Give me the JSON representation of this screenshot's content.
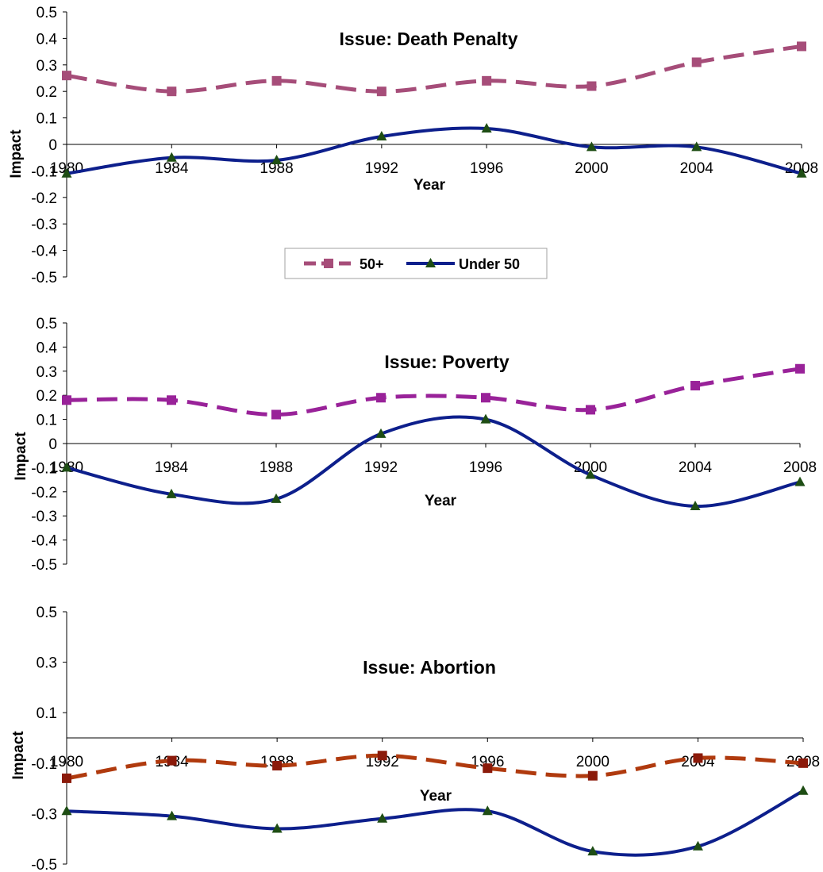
{
  "chart_data": [
    {
      "type": "line",
      "title": "Issue: Death Penalty",
      "xlabel": "Year",
      "ylabel": "Impact",
      "categories": [
        "1980",
        "1984",
        "1988",
        "1992",
        "1996",
        "2000",
        "2004",
        "2008"
      ],
      "ylim": [
        -0.5,
        0.5
      ],
      "yticks": [
        "0.5",
        "0.4",
        "0.3",
        "0.2",
        "0.1",
        "0",
        "-0.1",
        "-0.2",
        "-0.3",
        "-0.4",
        "-0.5"
      ],
      "ytick_values": [
        0.5,
        0.4,
        0.3,
        0.2,
        0.1,
        0,
        -0.1,
        -0.2,
        -0.3,
        -0.4,
        -0.5
      ],
      "legend": "bottom-center",
      "series": [
        {
          "name": "50+",
          "values": [
            0.26,
            0.2,
            0.24,
            0.2,
            0.24,
            0.22,
            0.31,
            0.37
          ],
          "color": "#a64d79",
          "dash": true,
          "marker": "square"
        },
        {
          "name": "Under 50",
          "values": [
            -0.11,
            -0.05,
            -0.06,
            0.03,
            0.06,
            -0.01,
            -0.01,
            -0.11
          ],
          "color": "#0d1f8c",
          "dash": false,
          "marker": "triangle"
        }
      ]
    },
    {
      "type": "line",
      "title": "Issue: Poverty",
      "xlabel": "Year",
      "ylabel": "Impact",
      "categories": [
        "1980",
        "1984",
        "1988",
        "1992",
        "1996",
        "2000",
        "2004",
        "2008"
      ],
      "ylim": [
        -0.5,
        0.5
      ],
      "yticks": [
        "0.5",
        "0.4",
        "0.3",
        "0.2",
        "0.1",
        "0",
        "-0.1",
        "-0.2",
        "-0.3",
        "-0.4",
        "-0.5"
      ],
      "ytick_values": [
        0.5,
        0.4,
        0.3,
        0.2,
        0.1,
        0,
        -0.1,
        -0.2,
        -0.3,
        -0.4,
        -0.5
      ],
      "series": [
        {
          "values": [
            0.18,
            0.18,
            0.12,
            0.19,
            0.19,
            0.14,
            0.24,
            0.31
          ],
          "color": "#992299",
          "dash": true,
          "marker": "square"
        },
        {
          "values": [
            -0.1,
            -0.21,
            -0.23,
            0.04,
            0.1,
            -0.13,
            -0.26,
            -0.16
          ],
          "color": "#0d1f8c",
          "dash": false,
          "marker": "triangle"
        }
      ]
    },
    {
      "type": "line",
      "title": "Issue: Abortion",
      "xlabel": "Year",
      "ylabel": "Impact",
      "categories": [
        "1980",
        "1984",
        "1988",
        "1992",
        "1996",
        "2000",
        "2004",
        "2008"
      ],
      "ylim": [
        -0.5,
        0.5
      ],
      "yticks": [
        "0.5",
        "0.3",
        "0.1",
        "-0.1",
        "-0.3",
        "-0.5"
      ],
      "ytick_values": [
        0.5,
        0.3,
        0.1,
        -0.1,
        -0.3,
        -0.5
      ],
      "series": [
        {
          "values": [
            -0.16,
            -0.09,
            -0.11,
            -0.07,
            -0.12,
            -0.15,
            -0.08,
            -0.1
          ],
          "color": "#b03a0e",
          "dash": true,
          "marker": "square"
        },
        {
          "values": [
            -0.29,
            -0.31,
            -0.36,
            -0.32,
            -0.29,
            -0.45,
            -0.43,
            -0.21
          ],
          "color": "#0d1f8c",
          "dash": false,
          "marker": "triangle"
        }
      ]
    }
  ]
}
